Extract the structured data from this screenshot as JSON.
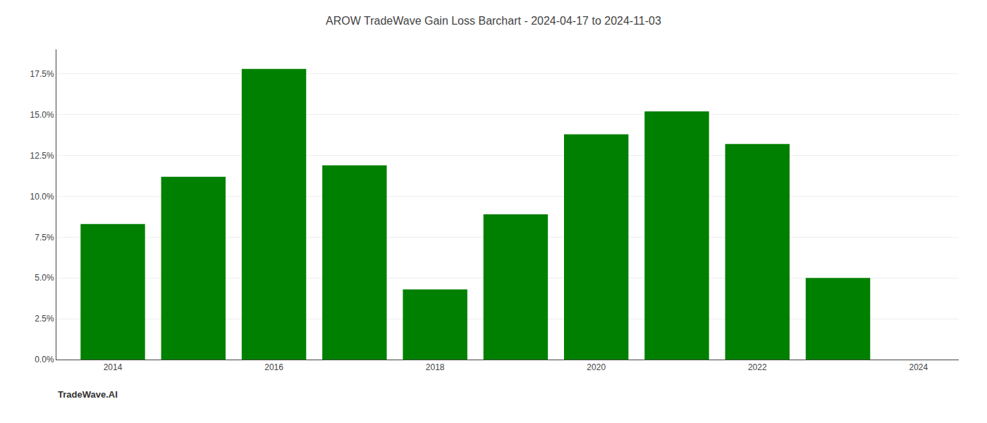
{
  "chart_data": {
    "type": "bar",
    "title": "AROW TradeWave Gain Loss Barchart - 2024-04-17 to 2024-11-03",
    "x": [
      2014,
      2015,
      2016,
      2017,
      2018,
      2019,
      2020,
      2021,
      2022,
      2023
    ],
    "values": [
      0.083,
      0.112,
      0.178,
      0.119,
      0.043,
      0.089,
      0.138,
      0.152,
      0.132,
      0.05
    ],
    "color": "#008000",
    "xlim": [
      2013.3,
      2024.5
    ],
    "xticks": [
      2014,
      2016,
      2018,
      2020,
      2022,
      2024
    ],
    "ylim": [
      0,
      0.19
    ],
    "yticks": [
      {
        "value": 0.0,
        "label": "0.0%"
      },
      {
        "value": 0.025,
        "label": "2.5%"
      },
      {
        "value": 0.05,
        "label": "5.0%"
      },
      {
        "value": 0.075,
        "label": "7.5%"
      },
      {
        "value": 0.1,
        "label": "10.0%"
      },
      {
        "value": 0.125,
        "label": "12.5%"
      },
      {
        "value": 0.15,
        "label": "15.0%"
      },
      {
        "value": 0.175,
        "label": "17.5%"
      }
    ],
    "grid": true,
    "annotations": [
      "TradeWave.AI"
    ]
  }
}
